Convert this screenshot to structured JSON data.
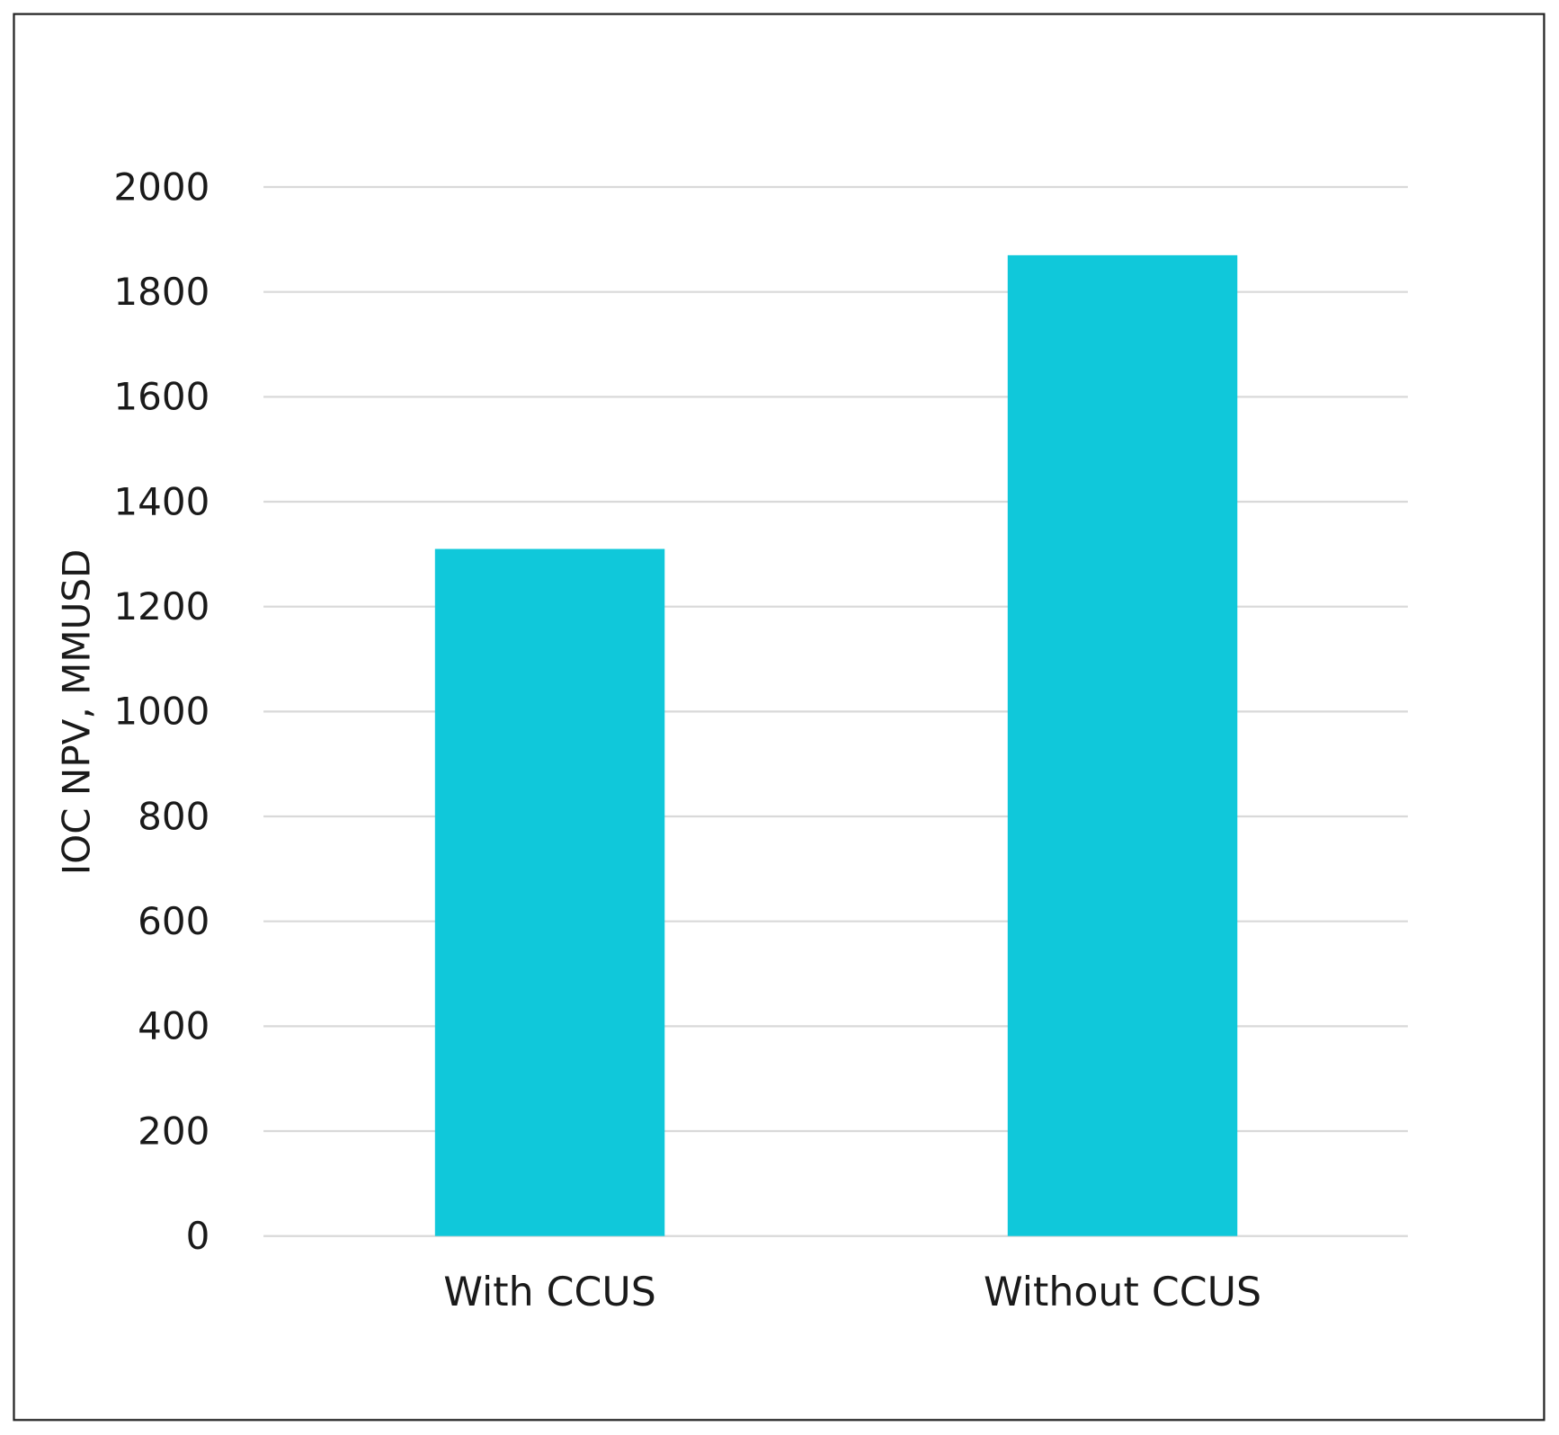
{
  "chart_data": {
    "type": "bar",
    "title": "",
    "xlabel": "",
    "ylabel": "IOC NPV, MMUSD",
    "categories": [
      "With CCUS",
      "Without CCUS"
    ],
    "values": [
      1310,
      1870
    ],
    "ylim": [
      0,
      2000
    ],
    "yticks": [
      "0",
      "200",
      "400",
      "600",
      "800",
      "1000",
      "1200",
      "1400",
      "1600",
      "1800",
      "2000"
    ],
    "grid": true,
    "legend": "none",
    "colors": {
      "bar": "#10C8DA",
      "grid": "#d9d9d9",
      "frame": "#222222"
    }
  }
}
